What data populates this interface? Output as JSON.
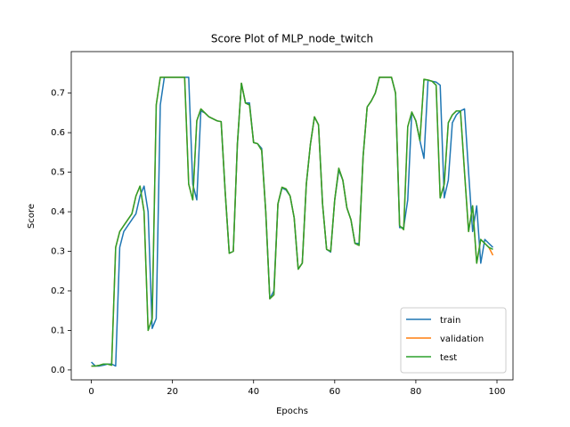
{
  "chart_data": {
    "type": "line",
    "title": "Score Plot of MLP_node_twitch",
    "xlabel": "Epochs",
    "ylabel": "Score",
    "x": [
      0,
      1,
      2,
      3,
      4,
      5,
      6,
      7,
      8,
      9,
      10,
      11,
      12,
      13,
      14,
      15,
      16,
      17,
      18,
      19,
      20,
      21,
      22,
      23,
      24,
      25,
      26,
      27,
      28,
      29,
      30,
      31,
      32,
      33,
      34,
      35,
      36,
      37,
      38,
      39,
      40,
      41,
      42,
      43,
      44,
      45,
      46,
      47,
      48,
      49,
      50,
      51,
      52,
      53,
      54,
      55,
      56,
      57,
      58,
      59,
      60,
      61,
      62,
      63,
      64,
      65,
      66,
      67,
      68,
      69,
      70,
      71,
      72,
      73,
      74,
      75,
      76,
      77,
      78,
      79,
      80,
      81,
      82,
      83,
      84,
      85,
      86,
      87,
      88,
      89,
      90,
      91,
      92,
      93,
      94,
      95,
      96,
      97,
      98,
      99
    ],
    "series": [
      {
        "name": "train",
        "color": "#1f77b4",
        "values": [
          0.02,
          0.01,
          0.01,
          0.012,
          0.015,
          0.015,
          0.01,
          0.31,
          0.35,
          0.365,
          0.38,
          0.395,
          0.44,
          0.465,
          0.4,
          0.105,
          0.13,
          0.67,
          0.74,
          0.74,
          0.74,
          0.74,
          0.74,
          0.74,
          0.74,
          0.47,
          0.43,
          0.655,
          0.65,
          0.64,
          0.635,
          0.63,
          0.628,
          0.45,
          0.295,
          0.3,
          0.57,
          0.725,
          0.675,
          0.675,
          0.575,
          0.572,
          0.56,
          0.4,
          0.18,
          0.2,
          0.42,
          0.46,
          0.455,
          0.44,
          0.385,
          0.255,
          0.27,
          0.47,
          0.57,
          0.64,
          0.62,
          0.42,
          0.305,
          0.298,
          0.43,
          0.505,
          0.48,
          0.41,
          0.38,
          0.32,
          0.32,
          0.54,
          0.665,
          0.68,
          0.7,
          0.74,
          0.74,
          0.74,
          0.74,
          0.7,
          0.36,
          0.36,
          0.43,
          0.652,
          0.63,
          0.58,
          0.535,
          0.733,
          0.73,
          0.728,
          0.72,
          0.435,
          0.48,
          0.625,
          0.645,
          0.655,
          0.66,
          0.5,
          0.35,
          0.415,
          0.27,
          0.33,
          0.32,
          0.31
        ]
      },
      {
        "name": "validation",
        "color": "#ff7f0e",
        "values": [
          0.01,
          0.01,
          0.012,
          0.015,
          0.015,
          0.012,
          0.31,
          0.35,
          0.365,
          0.38,
          0.395,
          0.44,
          0.465,
          0.4,
          0.1,
          0.13,
          0.67,
          0.74,
          0.74,
          0.74,
          0.74,
          0.74,
          0.74,
          0.74,
          0.47,
          0.43,
          0.63,
          0.66,
          0.65,
          0.64,
          0.635,
          0.63,
          0.628,
          0.45,
          0.295,
          0.3,
          0.57,
          0.725,
          0.675,
          0.67,
          0.575,
          0.572,
          0.555,
          0.4,
          0.18,
          0.19,
          0.42,
          0.462,
          0.458,
          0.44,
          0.385,
          0.255,
          0.27,
          0.47,
          0.57,
          0.64,
          0.62,
          0.42,
          0.305,
          0.3,
          0.43,
          0.51,
          0.48,
          0.41,
          0.38,
          0.32,
          0.315,
          0.54,
          0.665,
          0.68,
          0.7,
          0.74,
          0.74,
          0.74,
          0.74,
          0.7,
          0.365,
          0.355,
          0.615,
          0.652,
          0.63,
          0.58,
          0.735,
          0.733,
          0.73,
          0.72,
          0.435,
          0.47,
          0.625,
          0.645,
          0.655,
          0.655,
          0.5,
          0.35,
          0.415,
          0.27,
          0.33,
          0.32,
          0.31,
          0.29
        ]
      },
      {
        "name": "test",
        "color": "#2ca02c",
        "values": [
          0.01,
          0.01,
          0.012,
          0.015,
          0.015,
          0.012,
          0.31,
          0.35,
          0.365,
          0.38,
          0.395,
          0.44,
          0.465,
          0.4,
          0.1,
          0.13,
          0.67,
          0.74,
          0.74,
          0.74,
          0.74,
          0.74,
          0.74,
          0.74,
          0.47,
          0.43,
          0.63,
          0.66,
          0.65,
          0.64,
          0.635,
          0.63,
          0.628,
          0.45,
          0.295,
          0.3,
          0.57,
          0.725,
          0.675,
          0.67,
          0.575,
          0.572,
          0.555,
          0.4,
          0.18,
          0.19,
          0.42,
          0.462,
          0.458,
          0.44,
          0.385,
          0.255,
          0.27,
          0.47,
          0.57,
          0.64,
          0.62,
          0.42,
          0.305,
          0.3,
          0.43,
          0.51,
          0.48,
          0.41,
          0.38,
          0.32,
          0.315,
          0.54,
          0.665,
          0.68,
          0.7,
          0.74,
          0.74,
          0.74,
          0.74,
          0.7,
          0.365,
          0.355,
          0.615,
          0.652,
          0.63,
          0.58,
          0.735,
          0.733,
          0.73,
          0.72,
          0.435,
          0.47,
          0.625,
          0.645,
          0.655,
          0.655,
          0.5,
          0.35,
          0.415,
          0.27,
          0.33,
          0.32,
          0.31,
          0.305
        ]
      }
    ],
    "xlim": [
      -4.95,
      103.95
    ],
    "xticks": [
      0,
      20,
      40,
      60,
      80,
      100
    ],
    "ylim": [
      -0.025,
      0.805
    ],
    "yticks": [
      {
        "value": 0,
        "label": "0.0"
      },
      0.1,
      0.2,
      0.3,
      0.4,
      0.5,
      0.6,
      0.7
    ],
    "grid": false,
    "legend": "lower right"
  }
}
